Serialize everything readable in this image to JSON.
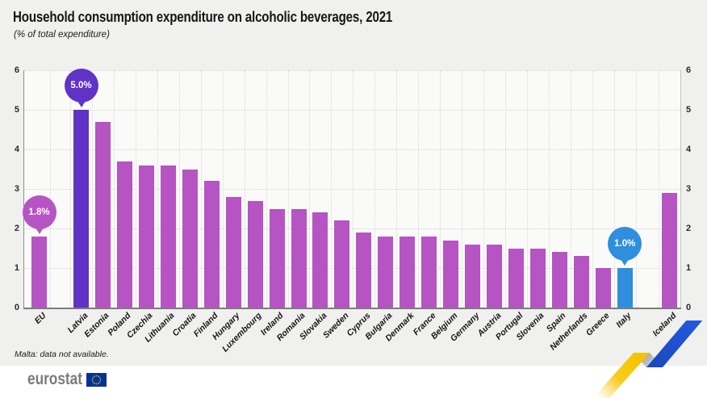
{
  "header": {
    "title": "Household consumption expenditure on alcoholic beverages, 2021",
    "subtitle": "(% of total expenditure)"
  },
  "footnote": "Malta: data not available.",
  "brand": {
    "logo_text": "eurostat"
  },
  "colors": {
    "bar_default": "#b654c4",
    "bar_latvia": "#6033c6",
    "bar_italy": "#2f8ede",
    "figure_bg": "#f0f0ee",
    "plot_bg": "#fafaf8",
    "ribbon_yellow": "#f6c500",
    "ribbon_gray": "#a7a7ad",
    "ribbon_blue": "#2153cc",
    "flag_blue": "#003399",
    "flag_stars": "#ffcc00"
  },
  "chart_data": {
    "type": "bar",
    "title": "Household consumption expenditure on alcoholic beverages, 2021",
    "subtitle": "(% of total expenditure)",
    "ylabel": "% of total expenditure",
    "ylim": [
      0,
      6
    ],
    "yticks": [
      0,
      1,
      2,
      3,
      4,
      5,
      6
    ],
    "dual_y_axis": true,
    "grid": "dotted",
    "legend": "none",
    "categories": [
      "EU",
      "Latvia",
      "Estonia",
      "Poland",
      "Czechia",
      "Lithuania",
      "Croatia",
      "Finland",
      "Hungary",
      "Luxembourg",
      "Ireland",
      "Romania",
      "Slovakia",
      "Sweden",
      "Cyprus",
      "Bulgaria",
      "Denmark",
      "France",
      "Belgium",
      "Germany",
      "Austria",
      "Portugal",
      "Slovenia",
      "Spain",
      "Netherlands",
      "Greece",
      "Italy",
      "Iceland"
    ],
    "values": [
      1.8,
      5.0,
      4.7,
      3.7,
      3.6,
      3.6,
      3.5,
      3.2,
      2.8,
      2.7,
      2.5,
      2.5,
      2.4,
      2.2,
      1.9,
      1.8,
      1.8,
      1.8,
      1.7,
      1.6,
      1.6,
      1.5,
      1.5,
      1.4,
      1.3,
      1.0,
      1.0,
      2.9
    ],
    "separated_categories": [
      "EU",
      "Iceland"
    ],
    "special_bars": {
      "Latvia": "#6033c6",
      "Italy": "#2f8ede"
    },
    "highlights": [
      {
        "category": "EU",
        "label": "1.8%",
        "color": "#b654c4"
      },
      {
        "category": "Latvia",
        "label": "5.0%",
        "color": "#6033c6"
      },
      {
        "category": "Italy",
        "label": "1.0%",
        "color": "#2f8ede"
      }
    ]
  }
}
